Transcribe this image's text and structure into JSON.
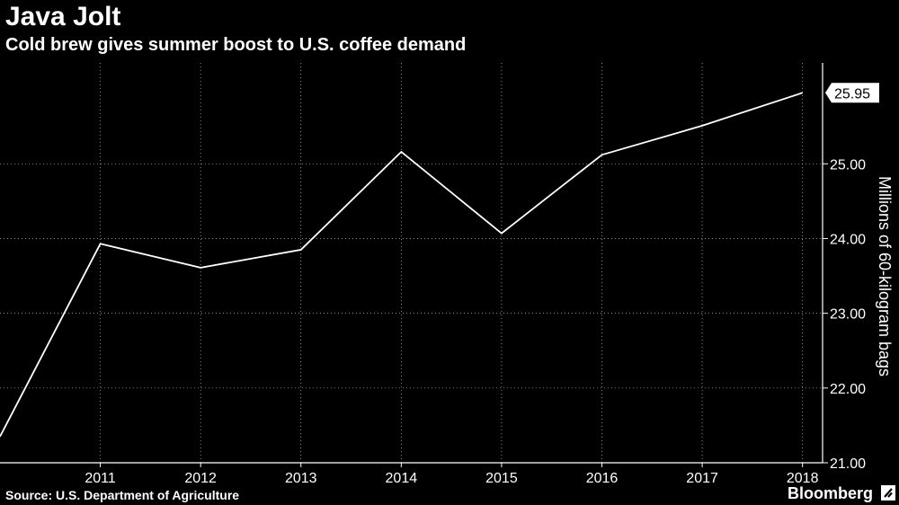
{
  "header": {
    "title": "Java Jolt",
    "subtitle": "Cold brew gives summer boost to U.S. coffee demand"
  },
  "footer": {
    "source": "Source: U.S. Department of Agriculture",
    "brand": "Bloomberg",
    "brand_icon": "bloomberg-mark-icon"
  },
  "colors": {
    "background": "#000000",
    "line": "#ffffff",
    "grid": "#ffffff"
  },
  "chart_data": {
    "type": "line",
    "title": "Java Jolt",
    "subtitle": "Cold brew gives summer boost to U.S. coffee demand",
    "xlabel": "",
    "ylabel": "Millions of 60-kilogram bags",
    "x": [
      2010,
      2011,
      2012,
      2013,
      2014,
      2015,
      2016,
      2017,
      2018
    ],
    "xticks": [
      "2011",
      "2012",
      "2013",
      "2014",
      "2015",
      "2016",
      "2017",
      "2018"
    ],
    "xlim": [
      2010,
      2018.2
    ],
    "ylim": [
      21.0,
      26.35
    ],
    "yticks": [
      "21.00",
      "22.00",
      "23.00",
      "24.00",
      "25.00"
    ],
    "y_axis_side": "right",
    "grid": "dotted",
    "series": [
      {
        "values": [
          21.35,
          23.93,
          23.61,
          23.85,
          25.16,
          24.07,
          25.12,
          25.51,
          25.95
        ]
      }
    ],
    "last_value_label": "25.95"
  }
}
